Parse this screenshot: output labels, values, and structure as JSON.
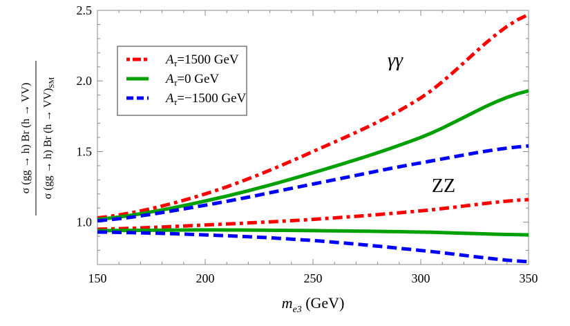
{
  "chart_data": {
    "type": "line",
    "xlabel_main": "m",
    "xlabel_sub": "e3",
    "xlabel_unit": " (GeV)",
    "ylabel_num": "σ (gg → h) Br (h → VV)",
    "ylabel_den": "σ (gg → h) Br (h → VV)",
    "ylabel_den_sub": "SM",
    "xlim": [
      150,
      350
    ],
    "ylim": [
      0.7,
      2.5
    ],
    "xticks": [
      "150",
      "200",
      "250",
      "300",
      "350"
    ],
    "yticks": [
      "1.0",
      "1.5",
      "2.0",
      "2.5"
    ],
    "grid": false,
    "legend_position": "top-left",
    "annotations": [
      {
        "text": "γγ"
      },
      {
        "text": "ZZ"
      }
    ],
    "x": [
      150,
      200,
      250,
      300,
      350
    ],
    "series": [
      {
        "name": "Aτ=1500 GeV",
        "legend": true,
        "channel": "γγ",
        "color": "#ff0000",
        "style": "dashdot",
        "values": [
          1.03,
          1.2,
          1.5,
          1.88,
          2.47
        ]
      },
      {
        "name": "Aτ=0 GeV",
        "legend": true,
        "channel": "γγ",
        "color": "#00a000",
        "style": "solid",
        "values": [
          1.02,
          1.15,
          1.35,
          1.6,
          1.93
        ]
      },
      {
        "name": "Aτ=−1500 GeV",
        "legend": true,
        "channel": "γγ",
        "color": "#0000ff",
        "style": "dashed",
        "values": [
          1.01,
          1.12,
          1.27,
          1.42,
          1.54
        ]
      },
      {
        "name": "Aτ=1500 GeV",
        "legend": false,
        "channel": "ZZ",
        "color": "#ff0000",
        "style": "dashdot",
        "values": [
          0.95,
          0.98,
          1.02,
          1.08,
          1.16
        ]
      },
      {
        "name": "Aτ=0 GeV",
        "legend": false,
        "channel": "ZZ",
        "color": "#00a000",
        "style": "solid",
        "values": [
          0.94,
          0.945,
          0.94,
          0.93,
          0.91
        ]
      },
      {
        "name": "Aτ=−1500 GeV",
        "legend": false,
        "channel": "ZZ",
        "color": "#0000ff",
        "style": "dashed",
        "values": [
          0.93,
          0.91,
          0.87,
          0.8,
          0.72
        ]
      }
    ],
    "legend_labels": [
      {
        "A": "A",
        "sub": "τ",
        "rest": "=1500 GeV"
      },
      {
        "A": "A",
        "sub": "τ",
        "rest": "=0 GeV"
      },
      {
        "A": "A",
        "sub": "τ",
        "rest": "=−1500 GeV"
      }
    ]
  }
}
